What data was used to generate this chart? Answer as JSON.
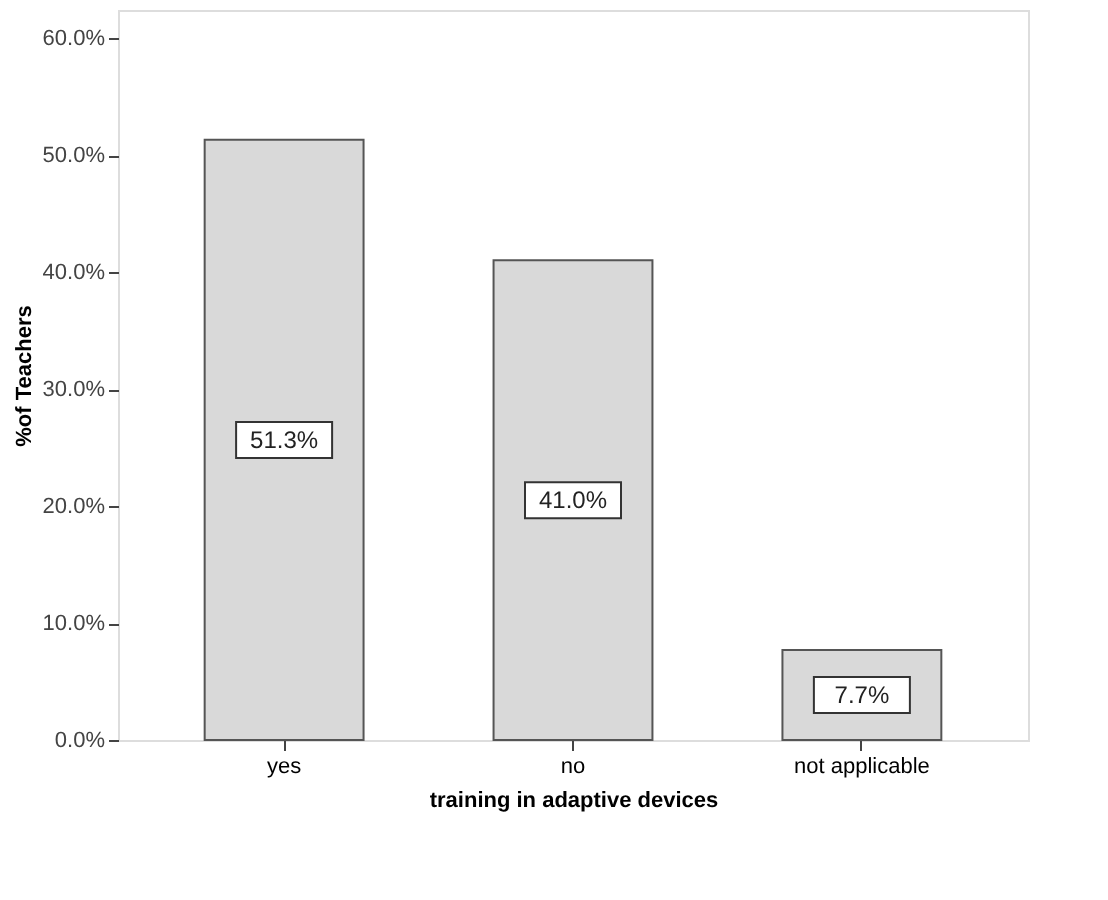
{
  "chart_data": {
    "type": "bar",
    "xlabel": "training in adaptive devices",
    "ylabel": "%of Teachers",
    "categories": [
      "yes",
      "no",
      "not applicable"
    ],
    "values": [
      51.3,
      41.0,
      7.7
    ],
    "value_labels": [
      "51.3%",
      "41.0%",
      "7.7%"
    ],
    "color": "#d9d9d9",
    "ylim": [
      0,
      62.4
    ],
    "yticks": [
      {
        "value": 0,
        "label": "0.0%"
      },
      {
        "value": 10,
        "label": "10.0%"
      },
      {
        "value": 20,
        "label": "20.0%"
      },
      {
        "value": 30,
        "label": "30.0%"
      },
      {
        "value": 40,
        "label": "40.0%"
      },
      {
        "value": 50,
        "label": "50.0%"
      },
      {
        "value": 60,
        "label": "60.0%"
      }
    ],
    "grid": false
  }
}
